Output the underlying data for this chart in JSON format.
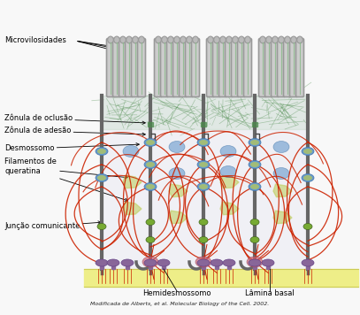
{
  "caption": "Modificada de Alberts, et al. Molecular Biology of the Cell. 2002.",
  "labels": {
    "microvilosidades": "Microvilosidades",
    "zonula_oclusao": "Zônula de oclusão",
    "zonula_adesao": "Zônula de adesão",
    "desmossomo": "Desmossomo",
    "filamentos": "Filamentos de\nqueratina",
    "juncao": "Junção comunicante",
    "hemidesmossomo": "Hemidesmossomo",
    "lamina_basal": "Lâmina basal"
  },
  "colors": {
    "background": "#f8f8f8",
    "cell_wall": "#888888",
    "cell_wall_dark": "#666666",
    "microvilli_outer": "#999999",
    "microvilli_inner": "#cccccc",
    "microvilli_tip": "#bbbbbb",
    "actin_green": "#88bb88",
    "actin_dark": "#4a8a4a",
    "red_filaments": "#cc2200",
    "blue_desmo": "#6699cc",
    "blue_dark": "#4477aa",
    "yellow_green": "#bbcc55",
    "yellow_basal": "#eeee88",
    "yellow_basal_dark": "#cccc55",
    "purple_hemi": "#886699",
    "purple_dark": "#664488",
    "green_junc": "#77aa33",
    "cell_interior": "#f0f0f5",
    "bracket_color": "#444444",
    "pink_red": "#cc6677"
  },
  "layout": {
    "fig_w": 4.07,
    "fig_h": 3.56,
    "dpi": 100,
    "xlim": [
      0,
      407
    ],
    "ylim": [
      0,
      356
    ]
  }
}
